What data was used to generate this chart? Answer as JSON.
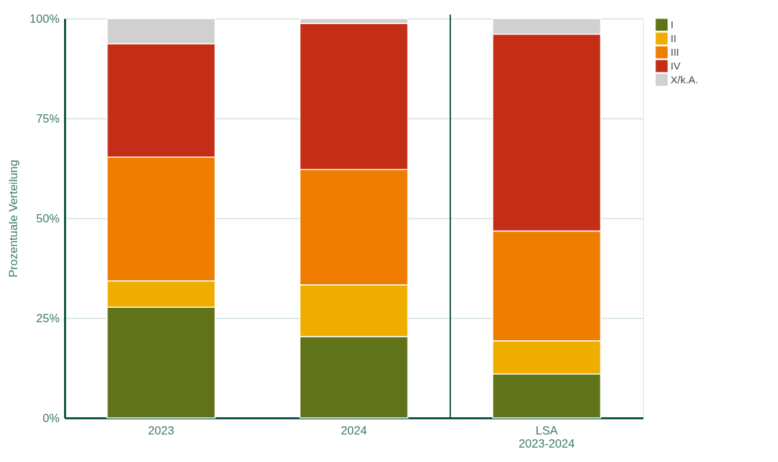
{
  "chart_data": {
    "type": "bar",
    "stacked": true,
    "ylabel": "Prozentuale Verteilung",
    "categories": [
      "2023",
      "2024",
      "LSA\n2023-2024"
    ],
    "series": [
      {
        "name": "I",
        "color": "#617318",
        "values": [
          27.7,
          20.4,
          11.0
        ]
      },
      {
        "name": "II",
        "color": "#efad00",
        "values": [
          6.6,
          12.9,
          8.3
        ]
      },
      {
        "name": "III",
        "color": "#ef7d00",
        "values": [
          31.0,
          28.9,
          27.5
        ]
      },
      {
        "name": "IV",
        "color": "#c42e16",
        "values": [
          28.4,
          36.6,
          49.3
        ]
      },
      {
        "name": "X/k.A.",
        "color": "#d0d0d0",
        "values": [
          6.3,
          1.2,
          3.9
        ]
      }
    ],
    "ylim": [
      0,
      100
    ],
    "yticks": [
      {
        "value": 0,
        "label": "0%"
      },
      {
        "value": 25,
        "label": "25%"
      },
      {
        "value": 50,
        "label": "50%"
      },
      {
        "value": 75,
        "label": "75%"
      },
      {
        "value": 100,
        "label": "100%"
      }
    ],
    "grid": "y",
    "legend": "right",
    "ref_lines": [
      {
        "axis": "x",
        "value": "LSA\n2023-2024",
        "color": "#0b5345"
      }
    ]
  }
}
